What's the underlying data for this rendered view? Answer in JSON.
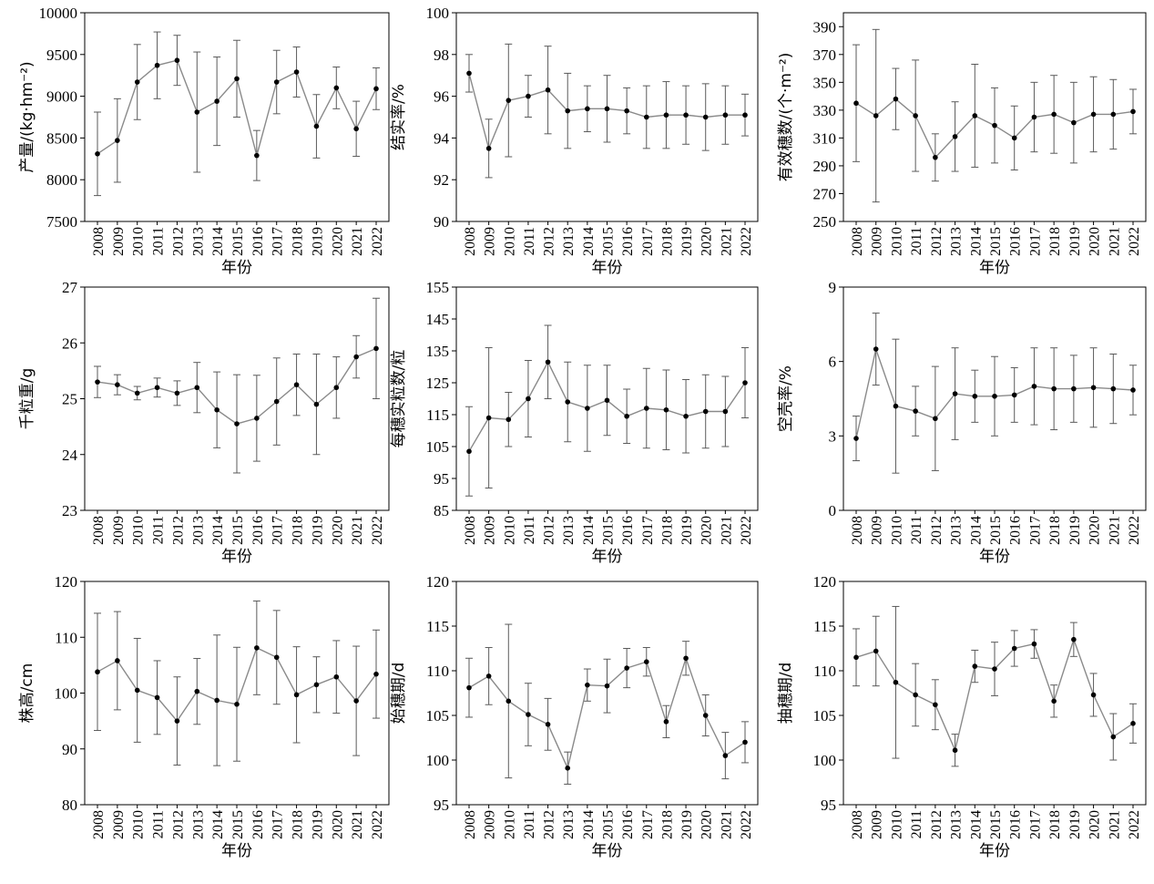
{
  "chart_data": [
    {
      "type": "line",
      "xlabel": "年份",
      "ylabel": "产量/(kg·hm⁻²)",
      "yticks": [
        7500,
        8000,
        8500,
        9000,
        9500,
        10000
      ],
      "ylim": [
        7500,
        10000
      ],
      "x": [
        "2008",
        "2009",
        "2010",
        "2011",
        "2012",
        "2013",
        "2014",
        "2015",
        "2016",
        "2017",
        "2018",
        "2019",
        "2020",
        "2021",
        "2022"
      ],
      "values": [
        8310,
        8470,
        9170,
        9370,
        9430,
        8810,
        8940,
        9210,
        8290,
        9170,
        9290,
        8640,
        9100,
        8610,
        9090
      ],
      "errors": [
        500,
        500,
        450,
        400,
        300,
        720,
        530,
        460,
        300,
        380,
        300,
        380,
        250,
        330,
        250
      ]
    },
    {
      "type": "line",
      "xlabel": "年份",
      "ylabel": "结实率/%",
      "yticks": [
        90,
        92,
        94,
        96,
        98,
        100
      ],
      "ylim": [
        90,
        100
      ],
      "x": [
        "2008",
        "2009",
        "2010",
        "2011",
        "2012",
        "2013",
        "2014",
        "2015",
        "2016",
        "2017",
        "2018",
        "2019",
        "2020",
        "2021",
        "2022"
      ],
      "values": [
        97.1,
        93.5,
        95.8,
        96.0,
        96.3,
        95.3,
        95.4,
        95.4,
        95.3,
        95.0,
        95.1,
        95.1,
        95.0,
        95.1,
        95.1
      ],
      "errors": [
        0.9,
        1.4,
        2.7,
        1.0,
        2.1,
        1.8,
        1.1,
        1.6,
        1.1,
        1.5,
        1.6,
        1.4,
        1.6,
        1.4,
        1.0
      ]
    },
    {
      "type": "line",
      "xlabel": "年份",
      "ylabel": "有效穗数/(个·m⁻²)",
      "yticks": [
        250,
        270,
        290,
        310,
        330,
        350,
        370,
        390
      ],
      "ylim": [
        250,
        400
      ],
      "x": [
        "2008",
        "2009",
        "2010",
        "2011",
        "2012",
        "2013",
        "2014",
        "2015",
        "2016",
        "2017",
        "2018",
        "2019",
        "2020",
        "2021",
        "2022"
      ],
      "values": [
        335,
        326,
        338,
        326,
        296,
        311,
        326,
        319,
        310,
        325,
        327,
        321,
        327,
        327,
        329
      ],
      "errors": [
        42,
        62,
        22,
        40,
        17,
        25,
        37,
        27,
        23,
        25,
        28,
        29,
        27,
        25,
        16
      ]
    },
    {
      "type": "line",
      "xlabel": "年份",
      "ylabel": "千粒重/g",
      "yticks": [
        23,
        24,
        25,
        26,
        27
      ],
      "ylim": [
        23,
        27
      ],
      "x": [
        "2008",
        "2009",
        "2010",
        "2011",
        "2012",
        "2013",
        "2014",
        "2015",
        "2016",
        "2017",
        "2018",
        "2019",
        "2020",
        "2021",
        "2022"
      ],
      "values": [
        25.3,
        25.25,
        25.1,
        25.2,
        25.1,
        25.2,
        24.8,
        24.55,
        24.65,
        24.95,
        25.25,
        24.9,
        25.2,
        25.75,
        25.9
      ],
      "errors": [
        0.28,
        0.18,
        0.12,
        0.17,
        0.22,
        0.45,
        0.68,
        0.88,
        0.77,
        0.78,
        0.55,
        0.9,
        0.55,
        0.38,
        0.9
      ]
    },
    {
      "type": "line",
      "xlabel": "年份",
      "ylabel": "每穗实粒数/粒",
      "yticks": [
        85,
        95,
        105,
        115,
        125,
        135,
        145,
        155
      ],
      "ylim": [
        85,
        155
      ],
      "x": [
        "2008",
        "2009",
        "2010",
        "2011",
        "2012",
        "2013",
        "2014",
        "2015",
        "2016",
        "2017",
        "2018",
        "2019",
        "2020",
        "2021",
        "2022"
      ],
      "values": [
        103.5,
        114,
        113.5,
        120,
        131.5,
        119,
        117,
        119.5,
        114.5,
        117,
        116.5,
        114.5,
        116,
        116,
        125
      ],
      "errors": [
        14,
        22,
        8.5,
        12,
        11.5,
        12.5,
        13.5,
        11,
        8.5,
        12.5,
        12.5,
        11.5,
        11.5,
        11,
        11
      ]
    },
    {
      "type": "line",
      "xlabel": "年份",
      "ylabel": "空壳率/%",
      "yticks": [
        0,
        3,
        6,
        9
      ],
      "ylim": [
        0,
        9
      ],
      "x": [
        "2008",
        "2009",
        "2010",
        "2011",
        "2012",
        "2013",
        "2014",
        "2015",
        "2016",
        "2017",
        "2018",
        "2019",
        "2020",
        "2021",
        "2022"
      ],
      "values": [
        2.9,
        6.5,
        4.2,
        4.0,
        3.7,
        4.7,
        4.6,
        4.6,
        4.65,
        5.0,
        4.9,
        4.9,
        4.95,
        4.9,
        4.85
      ],
      "errors": [
        0.9,
        1.45,
        2.7,
        1.0,
        2.1,
        1.85,
        1.05,
        1.6,
        1.1,
        1.55,
        1.65,
        1.35,
        1.6,
        1.4,
        1.0
      ]
    },
    {
      "type": "line",
      "xlabel": "年份",
      "ylabel": "株高/cm",
      "yticks": [
        80,
        90,
        100,
        110,
        120
      ],
      "ylim": [
        80,
        120
      ],
      "x": [
        "2008",
        "2009",
        "2010",
        "2011",
        "2012",
        "2013",
        "2014",
        "2015",
        "2016",
        "2017",
        "2018",
        "2019",
        "2020",
        "2021",
        "2022"
      ],
      "values": [
        103.8,
        105.8,
        100.5,
        99.2,
        95.0,
        100.3,
        98.7,
        98.0,
        108.1,
        106.4,
        99.7,
        101.5,
        102.9,
        98.6,
        103.4
      ],
      "errors": [
        10.5,
        8.8,
        9.3,
        6.6,
        7.9,
        5.9,
        11.7,
        10.2,
        8.4,
        8.4,
        8.6,
        5.0,
        6.5,
        9.8,
        7.9
      ]
    },
    {
      "type": "line",
      "xlabel": "年份",
      "ylabel": "始穗期/d",
      "yticks": [
        95,
        100,
        105,
        110,
        115,
        120
      ],
      "ylim": [
        95,
        120
      ],
      "x": [
        "2008",
        "2009",
        "2010",
        "2011",
        "2012",
        "2013",
        "2014",
        "2015",
        "2016",
        "2017",
        "2018",
        "2019",
        "2020",
        "2021",
        "2022"
      ],
      "values": [
        108.1,
        109.4,
        106.6,
        105.1,
        104.0,
        99.1,
        108.4,
        108.3,
        110.3,
        111.0,
        104.3,
        111.4,
        105.0,
        100.5,
        102.0
      ],
      "errors": [
        3.3,
        3.2,
        8.6,
        3.5,
        2.9,
        1.8,
        1.8,
        3.0,
        2.2,
        1.6,
        1.8,
        1.9,
        2.3,
        2.6,
        2.3
      ]
    },
    {
      "type": "line",
      "xlabel": "年份",
      "ylabel": "抽穗期/d",
      "yticks": [
        95,
        100,
        105,
        110,
        115,
        120
      ],
      "ylim": [
        95,
        120
      ],
      "x": [
        "2008",
        "2009",
        "2010",
        "2011",
        "2012",
        "2013",
        "2014",
        "2015",
        "2016",
        "2017",
        "2018",
        "2019",
        "2020",
        "2021",
        "2022"
      ],
      "values": [
        111.5,
        112.2,
        108.7,
        107.3,
        106.2,
        101.1,
        110.5,
        110.2,
        112.5,
        113.0,
        106.6,
        113.5,
        107.3,
        102.6,
        104.1
      ],
      "errors": [
        3.2,
        3.9,
        8.5,
        3.5,
        2.8,
        1.8,
        1.8,
        3.0,
        2.0,
        1.6,
        1.8,
        1.9,
        2.4,
        2.6,
        2.2
      ]
    }
  ]
}
